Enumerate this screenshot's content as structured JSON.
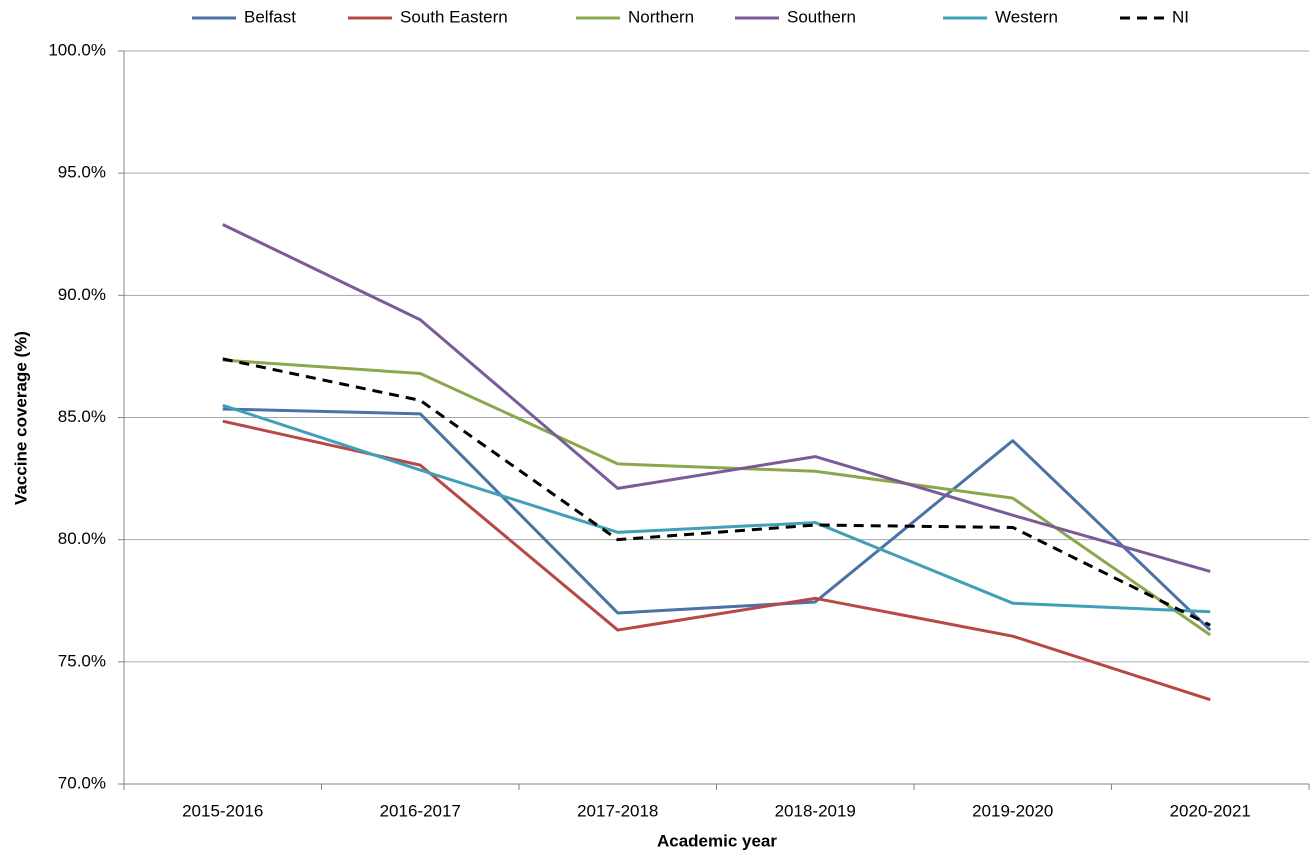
{
  "chart_data": {
    "type": "line",
    "categories": [
      "2015-2016",
      "2016-2017",
      "2017-2018",
      "2018-2019",
      "2019-2020",
      "2020-2021"
    ],
    "series": [
      {
        "name": "Belfast",
        "color": "#4a72a6",
        "values": [
          85.35,
          85.15,
          77.0,
          77.45,
          84.05,
          76.3
        ]
      },
      {
        "name": "South Eastern",
        "color": "#b84845",
        "values": [
          84.85,
          83.05,
          76.3,
          77.6,
          76.05,
          73.45
        ]
      },
      {
        "name": "Northern",
        "color": "#8aa84b",
        "values": [
          87.35,
          86.8,
          83.1,
          82.8,
          81.7,
          76.1
        ]
      },
      {
        "name": "Southern",
        "color": "#7b5a9a",
        "values": [
          92.9,
          89.0,
          82.1,
          83.4,
          81.0,
          78.7
        ]
      },
      {
        "name": "Western",
        "color": "#41a0b8",
        "values": [
          85.5,
          82.85,
          80.3,
          80.7,
          77.4,
          77.05
        ]
      },
      {
        "name": "NI",
        "color": "#000000",
        "dashed": true,
        "values": [
          87.4,
          85.7,
          80.0,
          80.6,
          80.5,
          76.5
        ]
      }
    ],
    "ylim": [
      70,
      100
    ],
    "yticks": [
      {
        "value": 70,
        "label": "70.0%"
      },
      {
        "value": 75,
        "label": "75.0%"
      },
      {
        "value": 80,
        "label": "80.0%"
      },
      {
        "value": 85,
        "label": "85.0%"
      },
      {
        "value": 90,
        "label": "90.0%"
      },
      {
        "value": 95,
        "label": "95.0%"
      },
      {
        "value": 100,
        "label": "100.0%"
      }
    ],
    "ylabel": "Vaccine coverage (%)",
    "xlabel": "Academic year",
    "grid": true,
    "legend": "top"
  }
}
